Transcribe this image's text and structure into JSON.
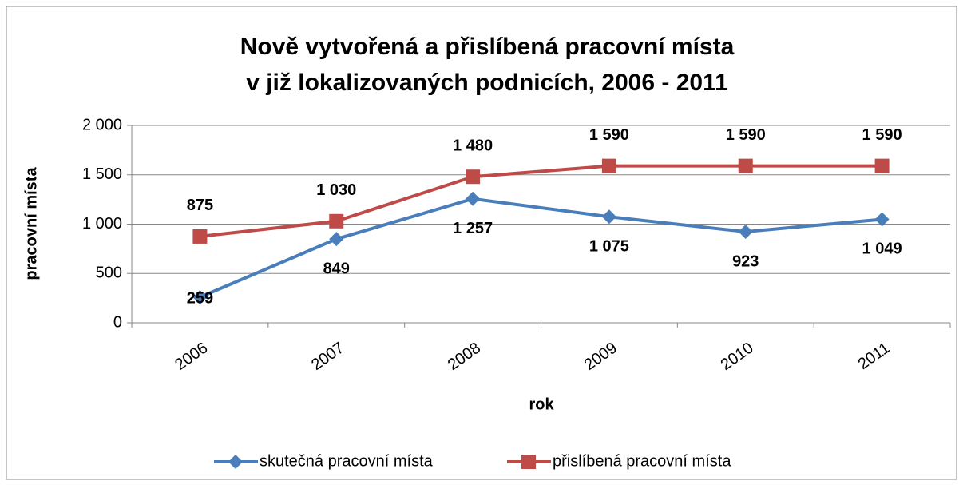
{
  "chart_data": {
    "type": "line",
    "title": [
      "Nově vytvořená a přislíbená pracovní místa",
      "v již lokalizovaných podnicích, 2006 - 2011"
    ],
    "x_label": "rok",
    "y_label": "pracovní místa",
    "categories": [
      "2006",
      "2007",
      "2008",
      "2009",
      "2010",
      "2011"
    ],
    "series": [
      {
        "name": "skutečná pracovní místa",
        "color": "#4a7ebb",
        "marker": "diamond",
        "values": [
          259,
          849,
          1257,
          1075,
          923,
          1049
        ],
        "value_labels": [
          "259",
          "849",
          "1 257",
          "1 075",
          "923",
          "1 049"
        ]
      },
      {
        "name": "přislíbená pracovní místa",
        "color": "#be4b48",
        "marker": "square",
        "values": [
          875,
          1030,
          1480,
          1590,
          1590,
          1590
        ],
        "value_labels": [
          "875",
          "1 030",
          "1 480",
          "1 590",
          "1 590",
          "1 590"
        ]
      }
    ],
    "ylim": [
      0,
      2000
    ],
    "yticks": [
      0,
      500,
      {
        "value": 1000,
        "label": "1 000"
      },
      {
        "value": 1500,
        "label": "1 500"
      },
      {
        "value": 2000,
        "label": "2 000"
      }
    ],
    "grid": true,
    "legend": "bottom"
  }
}
